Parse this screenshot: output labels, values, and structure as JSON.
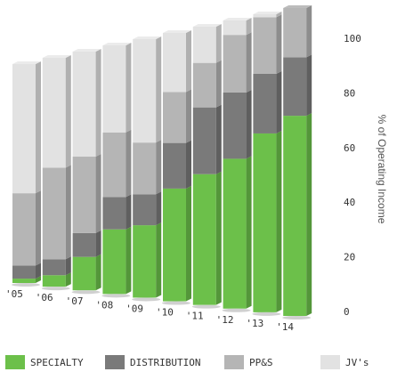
{
  "chart_data": {
    "type": "bar",
    "stacked": true,
    "categories": [
      "'05",
      "'06",
      "'07",
      "'08",
      "'09",
      "'10",
      "'11",
      "'12",
      "'13",
      "'14"
    ],
    "series": [
      {
        "name": "SPECIALTY",
        "color": "#6cc04a",
        "values": [
          2,
          5,
          14,
          26,
          28,
          42,
          47,
          52,
          60,
          65
        ]
      },
      {
        "name": "DISTRIBUTION",
        "color": "#7a7a7a",
        "values": [
          6,
          7,
          10,
          13,
          12,
          17,
          24,
          23,
          20,
          19
        ]
      },
      {
        "name": "PP&S",
        "color": "#b5b5b5",
        "values": [
          33,
          40,
          32,
          26,
          20,
          19,
          16,
          20,
          19,
          16
        ]
      },
      {
        "name": "JV's",
        "color": "#e2e2e2",
        "values": [
          59,
          48,
          44,
          35,
          40,
          22,
          13,
          5,
          1,
          0
        ]
      }
    ],
    "ylabel": "% of Operating Income",
    "ylim": [
      0,
      100
    ],
    "yticks": [
      0,
      20,
      40,
      60,
      80,
      100
    ],
    "grid": false,
    "legend_position": "bottom"
  }
}
